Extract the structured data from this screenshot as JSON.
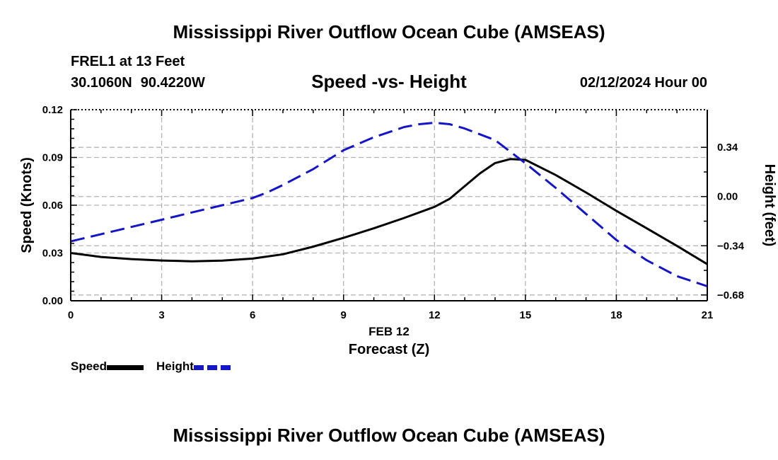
{
  "page": {
    "title": "Mississippi River Outflow Ocean Cube (AMSEAS)",
    "footer_title": "Mississippi River Outflow Ocean Cube (AMSEAS)",
    "station": "FREL1 at 13 Feet",
    "lat": "30.1060N",
    "lon": "90.4220W",
    "subtitle": "Speed -vs- Height",
    "datetime": "02/12/2024 Hour 00"
  },
  "legend": {
    "speed_label": "Speed",
    "height_label": "Height"
  },
  "colors": {
    "speed": "#000000",
    "height": "#1515c8",
    "grid": "#b4b4b4"
  },
  "chart_data": {
    "type": "line",
    "title": "Speed -vs- Height",
    "xlabel": "Forecast (Z)",
    "xlabel_date": "FEB 12",
    "ylabel": "Speed (Knots)",
    "y2label": "Height (feet)",
    "xlim": [
      0,
      21
    ],
    "ylim": [
      0,
      0.12
    ],
    "y2lim": [
      -0.72,
      0.6
    ],
    "x_ticks": [
      0,
      3,
      6,
      9,
      12,
      15,
      18,
      21
    ],
    "x_tick_labels": [
      "0",
      "3",
      "6",
      "9",
      "12",
      "15",
      "18",
      "21"
    ],
    "y_ticks": [
      0,
      0.03,
      0.06,
      0.09,
      0.12
    ],
    "y_tick_labels": [
      "0.00",
      "0.03",
      "0.06",
      "0.09",
      "0.12"
    ],
    "y2_ticks": [
      -0.68,
      -0.34,
      0,
      0.34
    ],
    "y2_tick_labels": [
      "−0.68",
      "−0.34",
      "0.00",
      "0.34"
    ],
    "grid": true,
    "series": [
      {
        "name": "Speed",
        "axis": "left",
        "style": "solid",
        "x": [
          0,
          1,
          2,
          3,
          4,
          5,
          6,
          7,
          8,
          9,
          10,
          11,
          12,
          12.5,
          13,
          13.5,
          14,
          14.5,
          15,
          16,
          17,
          18,
          19,
          20,
          21
        ],
        "values": [
          0.03,
          0.0275,
          0.0262,
          0.0253,
          0.0248,
          0.0252,
          0.0265,
          0.0292,
          0.034,
          0.0395,
          0.0455,
          0.052,
          0.059,
          0.064,
          0.072,
          0.08,
          0.0865,
          0.089,
          0.0885,
          0.079,
          0.068,
          0.0565,
          0.0455,
          0.0345,
          0.023
        ]
      },
      {
        "name": "Height",
        "axis": "right",
        "style": "dashed",
        "x": [
          0,
          1,
          2,
          3,
          4,
          5,
          6,
          6.5,
          7,
          8,
          9,
          10,
          11,
          11.5,
          12,
          12.5,
          13,
          14,
          15,
          16,
          17,
          18,
          19,
          20,
          21
        ],
        "values": [
          -0.31,
          -0.26,
          -0.21,
          -0.16,
          -0.11,
          -0.06,
          -0.01,
          0.03,
          0.08,
          0.19,
          0.32,
          0.41,
          0.48,
          0.5,
          0.51,
          0.5,
          0.47,
          0.39,
          0.23,
          0.06,
          -0.12,
          -0.3,
          -0.44,
          -0.55,
          -0.62
        ]
      }
    ]
  }
}
